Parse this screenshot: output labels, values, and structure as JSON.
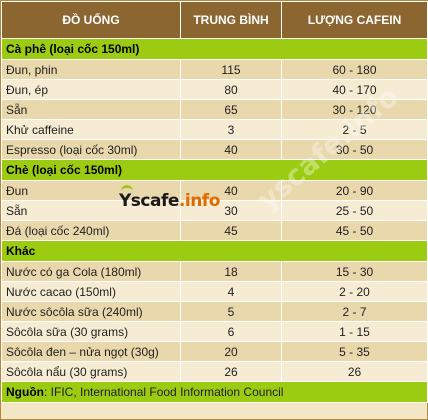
{
  "header": {
    "col1": "ĐỒ UỐNG",
    "col2": "TRUNG BÌNH",
    "col3": "LƯỢNG CAFEIN"
  },
  "sections": [
    {
      "title": "Cà phê (loại cốc 150ml)",
      "rows": [
        {
          "name": "Đun, phin",
          "avg": "115",
          "range": "60 - 180"
        },
        {
          "name": "Đun, ép",
          "avg": "80",
          "range": "40 - 170"
        },
        {
          "name": "Sẵn",
          "avg": "65",
          "range": "30 - 120"
        },
        {
          "name": "Khử caffeine",
          "avg": "3",
          "range": "2 - 5"
        },
        {
          "name": "Espresso (loại cốc 30ml)",
          "avg": "40",
          "range": "30 - 50"
        }
      ]
    },
    {
      "title": "Chè (loại cốc 150ml)",
      "rows": [
        {
          "name": "Đun",
          "avg": "40",
          "range": "20 - 90"
        },
        {
          "name": "Sẵn",
          "avg": "30",
          "range": "25 - 50"
        },
        {
          "name": "Đá (loại cốc 240ml)",
          "avg": "45",
          "range": "45 - 50"
        }
      ]
    },
    {
      "title": "Khác",
      "rows": [
        {
          "name": "Nước có ga Cola (180ml)",
          "avg": "18",
          "range": "15 - 30"
        },
        {
          "name": "Nước cacao (150ml)",
          "avg": "4",
          "range": "2 - 20"
        },
        {
          "name": "Nước sôcôla sữa (240ml)",
          "avg": "5",
          "range": "2 - 7"
        },
        {
          "name": "Sôcôla sữa (30 grams)",
          "avg": "6",
          "range": "1 - 15"
        },
        {
          "name": "Sôcôla đen – nửa ngọt (30g)",
          "avg": "20",
          "range": "5 - 35"
        },
        {
          "name": "Sôcôla nẩu (30 grams)",
          "avg": "26",
          "range": "26"
        }
      ]
    }
  ],
  "source": {
    "label": "Nguồn",
    "text": ": IFIC, International Food Information Council"
  },
  "watermark": {
    "brand": "Yscafe",
    "domain": ".info",
    "diagonal": "yscafe.info"
  }
}
